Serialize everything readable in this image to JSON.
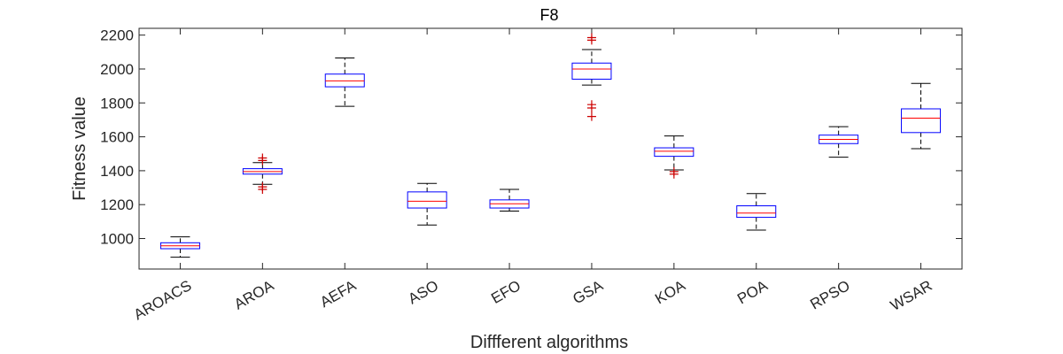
{
  "chart_data": {
    "type": "boxplot",
    "title": "F8",
    "xlabel": "Diffferent algorithms",
    "ylabel": "Fitness value",
    "ylim": [
      820,
      2240
    ],
    "yticks": [
      1000,
      1200,
      1400,
      1600,
      1800,
      2000,
      2200
    ],
    "ytick_labels": [
      "1000",
      "1200",
      "1400",
      "1600",
      "1800",
      "2000",
      "2200"
    ],
    "grid": false,
    "colors": {
      "box": "#0000ff",
      "median": "#ff0000",
      "whisker": "#000000",
      "outlier": "#cc0000",
      "axis": "#262626"
    },
    "categories": [
      "AROACS",
      "AROA",
      "AEFA",
      "ASO",
      "EFO",
      "GSA",
      "KOA",
      "POA",
      "RPSO",
      "WSAR"
    ],
    "boxes": [
      {
        "label": "AROACS",
        "whisker_low": 890,
        "q1": 940,
        "median": 957,
        "q3": 975,
        "whisker_high": 1010,
        "outliers": []
      },
      {
        "label": "AROA",
        "whisker_low": 1320,
        "q1": 1380,
        "median": 1395,
        "q3": 1412,
        "whisker_high": 1448,
        "outliers": [
          1460,
          1475,
          1305,
          1290
        ]
      },
      {
        "label": "AEFA",
        "whisker_low": 1780,
        "q1": 1895,
        "median": 1930,
        "q3": 1970,
        "whisker_high": 2065,
        "outliers": []
      },
      {
        "label": "ASO",
        "whisker_low": 1080,
        "q1": 1180,
        "median": 1220,
        "q3": 1275,
        "whisker_high": 1325,
        "outliers": []
      },
      {
        "label": "EFO",
        "whisker_low": 1162,
        "q1": 1180,
        "median": 1205,
        "q3": 1228,
        "whisker_high": 1290,
        "outliers": []
      },
      {
        "label": "GSA",
        "whisker_low": 1905,
        "q1": 1940,
        "median": 2000,
        "q3": 2035,
        "whisker_high": 2115,
        "outliers": [
          2170,
          2185,
          1790,
          1770,
          1720
        ]
      },
      {
        "label": "KOA",
        "whisker_low": 1405,
        "q1": 1485,
        "median": 1515,
        "q3": 1535,
        "whisker_high": 1605,
        "outliers": [
          1395,
          1380
        ]
      },
      {
        "label": "POA",
        "whisker_low": 1050,
        "q1": 1125,
        "median": 1150,
        "q3": 1193,
        "whisker_high": 1265,
        "outliers": []
      },
      {
        "label": "RPSO",
        "whisker_low": 1480,
        "q1": 1560,
        "median": 1585,
        "q3": 1610,
        "whisker_high": 1660,
        "outliers": []
      },
      {
        "label": "WSAR",
        "whisker_low": 1530,
        "q1": 1625,
        "median": 1710,
        "q3": 1765,
        "whisker_high": 1915,
        "outliers": []
      }
    ]
  }
}
